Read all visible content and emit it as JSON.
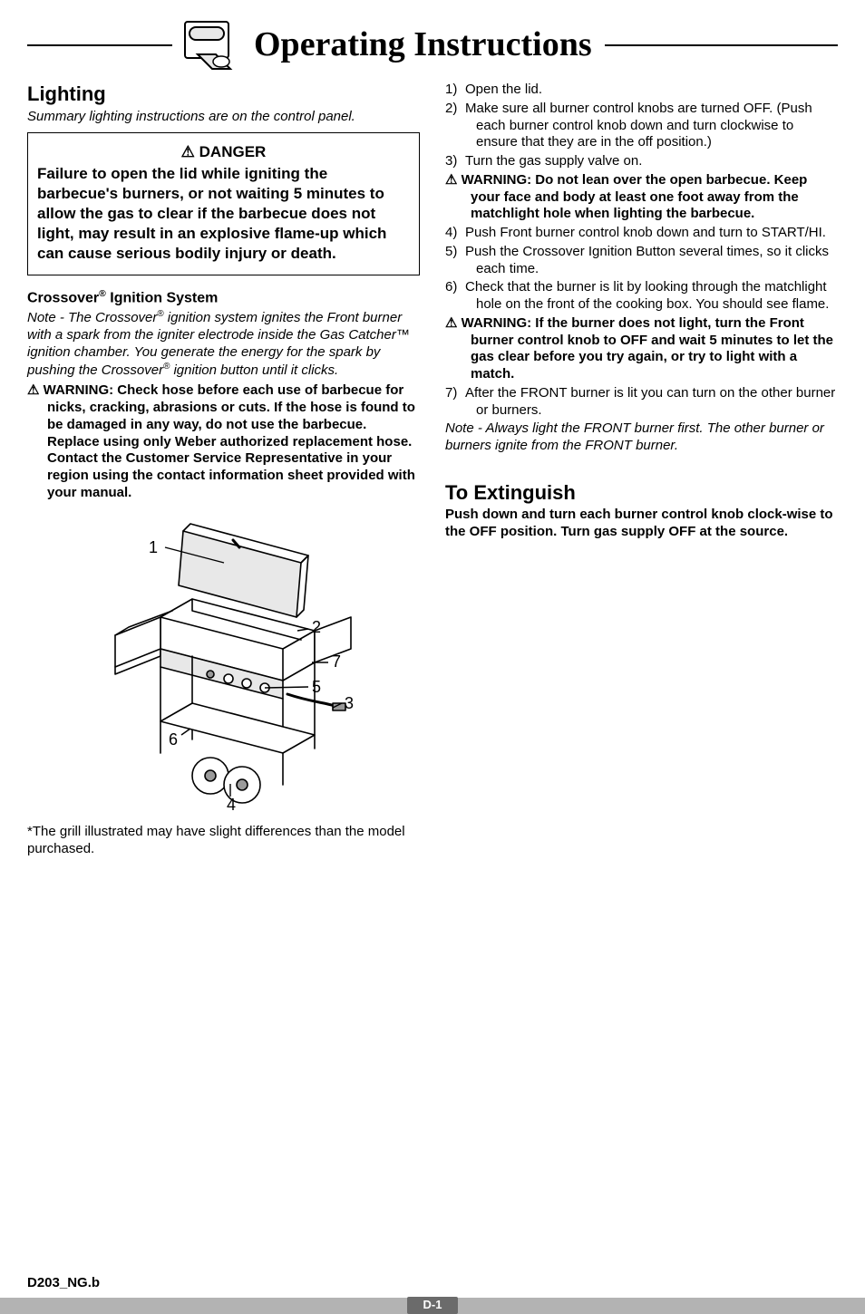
{
  "page": {
    "title": "Operating Instructions",
    "doc_code": "D203_NG.b",
    "page_number": "D-1"
  },
  "colors": {
    "text": "#000000",
    "background": "#ffffff",
    "footer_bar": "#b3b3b3",
    "page_pill_bg": "#6b6b6b",
    "page_pill_text": "#ffffff",
    "rule": "#000000"
  },
  "figure": {
    "labels": [
      "1",
      "2",
      "3",
      "4",
      "5",
      "6",
      "7"
    ],
    "caption": "*The grill illustrated may have slight differences than the model purchased.",
    "stroke": "#000000",
    "fill_light": "#e8e8e8",
    "fill_dark": "#9a9a9a"
  },
  "left": {
    "heading": "Lighting",
    "summary": "Summary lighting instructions are on the control panel.",
    "danger": {
      "title": "⚠ DANGER",
      "body": "Failure to open the lid while igniting the barbecue's burners, or not waiting 5 minutes to allow the gas to clear if the barbecue does not light, may result in an explosive flame-up which can cause serious bodily injury or death."
    },
    "crossover": {
      "heading_html": "Crossover<span class='sup'>®</span> Ignition System",
      "note_html": "Note - The Crossover<span class='sup'>®</span> ignition system ignites the Front burner with a spark from the igniter electrode inside the Gas Catcher™ ignition chamber. You generate the energy for the spark by pushing the Crossover<span class='sup'>®</span> ignition button until it clicks.",
      "warning": "⚠ WARNING: Check hose before each use of barbecue for nicks, cracking, abrasions or cuts. If the hose is found to be damaged in any way, do not use the barbecue. Replace using only Weber authorized replacement hose. Contact the Customer Service Representative in your region using the contact information sheet provided with your manual."
    }
  },
  "right": {
    "steps": [
      {
        "n": "1)",
        "text": "Open the lid."
      },
      {
        "n": "2)",
        "text": "Make sure all burner control knobs are turned OFF. (Push each burner control knob down and turn clockwise to ensure that they are in the off position.)"
      },
      {
        "n": "3)",
        "text": "Turn the gas supply valve on."
      }
    ],
    "warning1": "⚠ WARNING: Do not lean over the open barbecue. Keep your face and body at least one foot away from the matchlight hole when lighting the barbecue.",
    "steps2": [
      {
        "n": "4)",
        "text": "Push Front burner control knob down and turn to START/HI."
      },
      {
        "n": "5)",
        "text": "Push the Crossover Ignition Button several times, so it clicks each time."
      },
      {
        "n": "6)",
        "text": "Check that the burner is lit by looking through the matchlight hole on the front of the cooking box. You should see flame."
      }
    ],
    "warning2": "⚠ WARNING: If the burner does not light, turn the Front burner control knob to OFF and wait 5 minutes to let the gas clear before you try again, or try to light with a match.",
    "steps3": [
      {
        "n": "7)",
        "text": "After the FRONT burner is lit you can turn on the other burner or burners."
      }
    ],
    "closing_note": "Note - Always light the FRONT burner first. The other burner or burners ignite from the FRONT burner.",
    "extinguish": {
      "heading": "To Extinguish",
      "body": "Push down and turn each burner control knob clock-wise to the OFF position. Turn gas supply OFF at the source."
    }
  }
}
